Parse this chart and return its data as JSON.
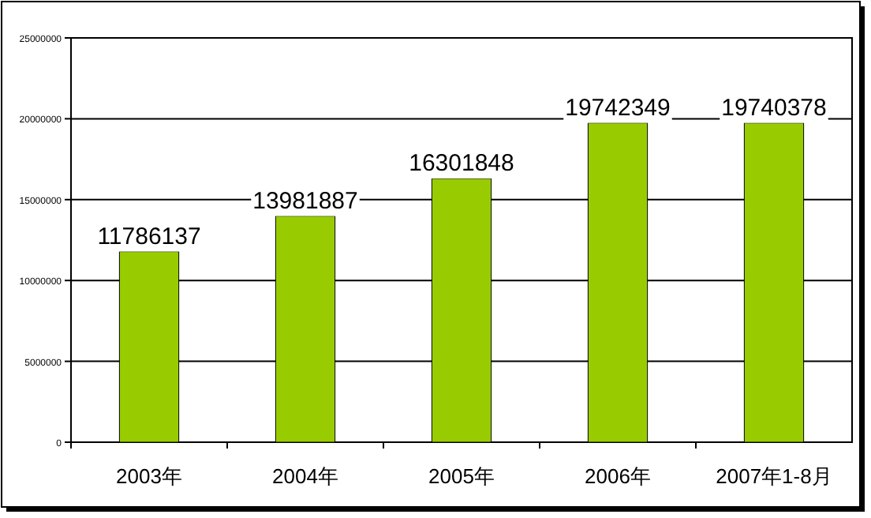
{
  "chart_data": {
    "type": "bar",
    "categories": [
      "2003年",
      "2004年",
      "2005年",
      "2006年",
      "2007年1-8月"
    ],
    "values": [
      11786137,
      13981887,
      16301848,
      19742349,
      19740378
    ],
    "color": "#99cc00",
    "ylim": [
      0,
      25000000
    ],
    "yticks": [
      0,
      5000000,
      10000000,
      15000000,
      20000000,
      25000000
    ],
    "grid": "y",
    "data_labels": true
  }
}
